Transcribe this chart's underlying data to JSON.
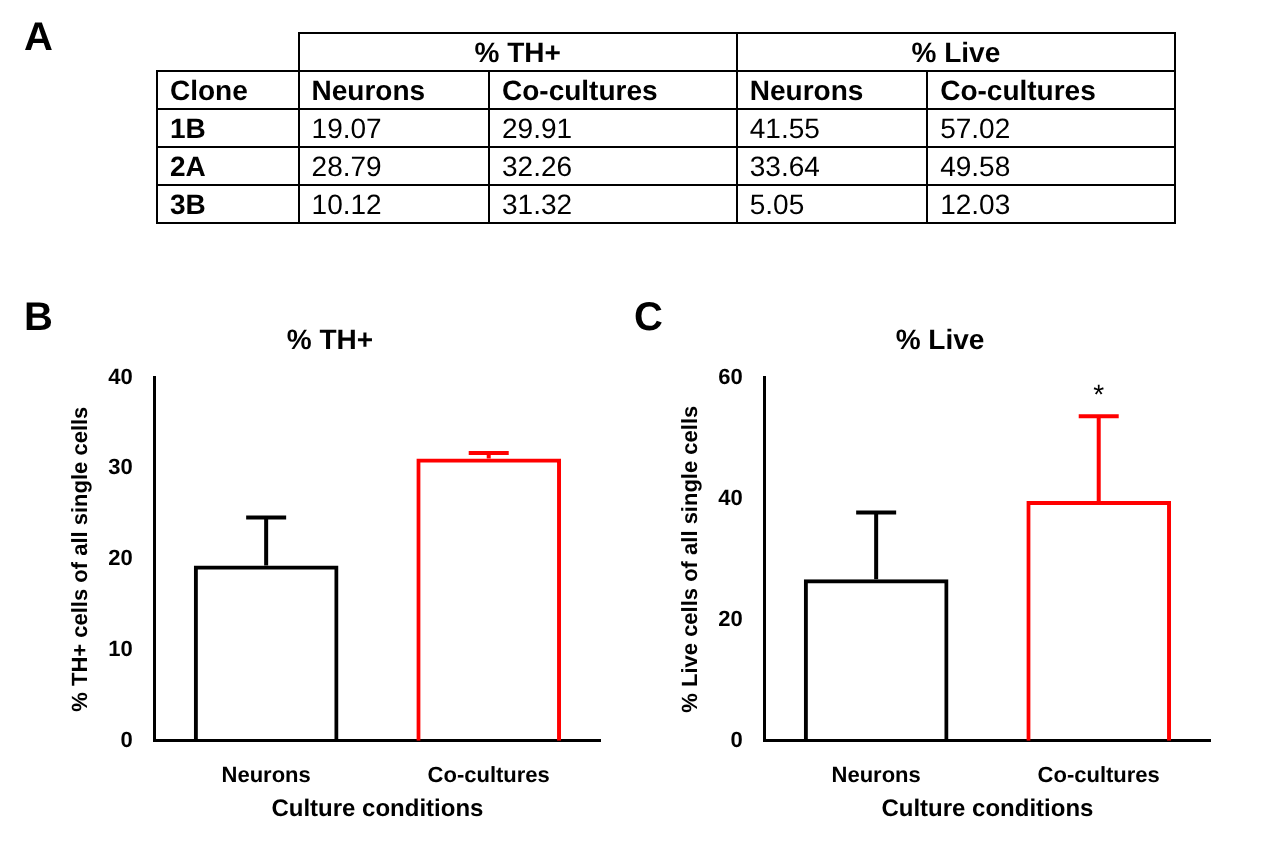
{
  "chart_data": [
    {
      "type": "heatmap",
      "title": "A",
      "data_labels": true,
      "ylabel": "Clone",
      "annotations": [
        "% TH+",
        "% Live"
      ],
      "categories": [
        "Neurons",
        "Co-cultures",
        "Neurons",
        "Co-cultures"
      ],
      "y_categories": [
        "1B",
        "2A",
        "3B"
      ],
      "cells": [
        [
          19.07,
          29.91,
          41.55,
          57.02
        ],
        [
          28.79,
          32.26,
          33.64,
          49.58
        ],
        [
          10.12,
          31.32,
          5.05,
          12.03
        ]
      ]
    },
    {
      "type": "bar",
      "title": "% TH+",
      "xlabel": "Culture conditions",
      "ylabel": "% TH+ cells of all single cells",
      "annotations": [
        "B"
      ],
      "categories": [
        "Neurons",
        "Co-cultures"
      ],
      "values": [
        19.3,
        31.1
      ],
      "errors": [
        [
          19.3,
          24.6
        ],
        [
          31.1,
          31.7
        ]
      ],
      "colors": [
        "#000000",
        "#ff0000"
      ],
      "ylim": [
        0,
        40
      ],
      "yticks": [
        0,
        10,
        20,
        30,
        40
      ],
      "grid": false,
      "legend": false
    },
    {
      "type": "bar",
      "title": "% Live",
      "xlabel": "Culture conditions",
      "ylabel": "% Live cells of all single cells",
      "annotations": [
        "C",
        "*"
      ],
      "categories": [
        "Neurons",
        "Co-cultures"
      ],
      "values": [
        26.7,
        39.6
      ],
      "errors": [
        [
          26.7,
          37.7
        ],
        [
          39.6,
          53.6
        ]
      ],
      "colors": [
        "#000000",
        "#ff0000"
      ],
      "ylim": [
        0,
        60
      ],
      "yticks": [
        0,
        20,
        40,
        60
      ],
      "grid": false,
      "legend": false
    }
  ]
}
